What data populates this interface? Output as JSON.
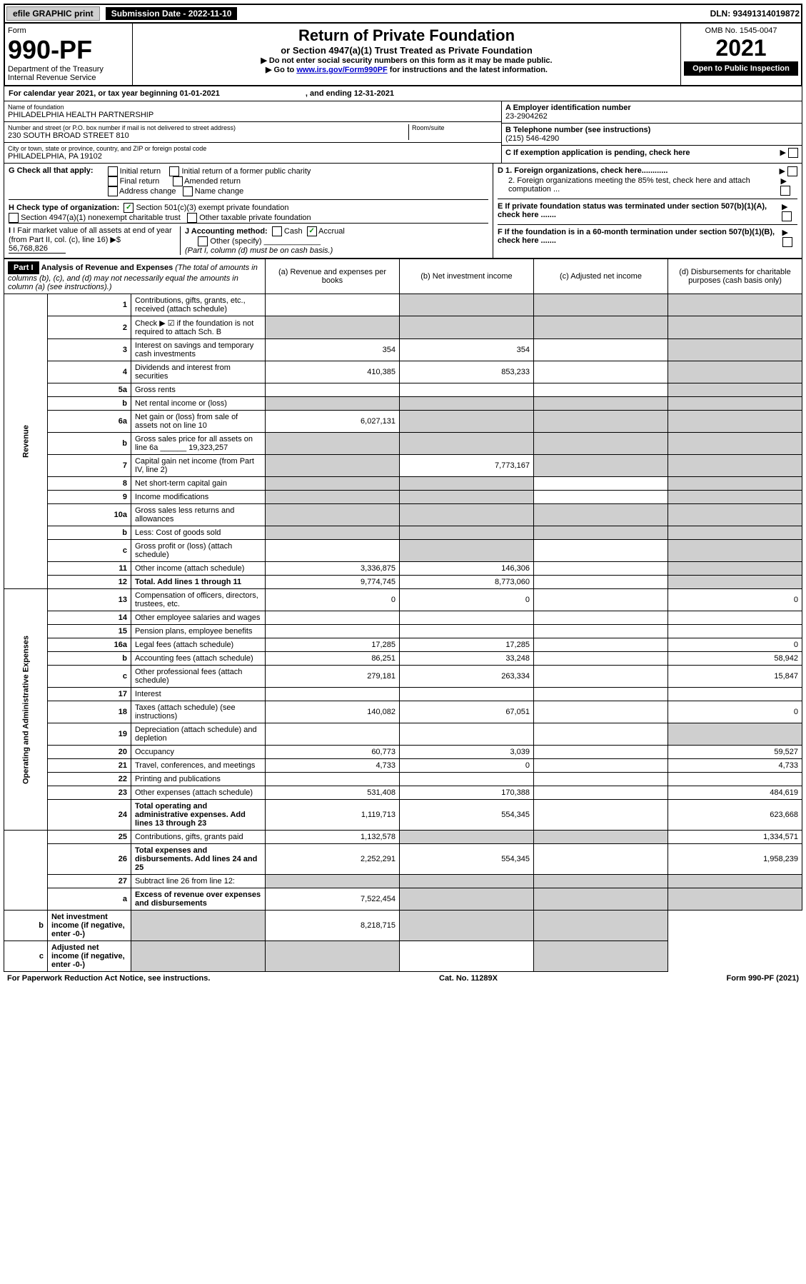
{
  "top": {
    "efile": "efile GRAPHIC print",
    "submission": "Submission Date - 2022-11-10",
    "dln": "DLN: 93491314019872"
  },
  "header": {
    "form_label": "Form",
    "form_num": "990-PF",
    "dept": "Department of the Treasury",
    "irs": "Internal Revenue Service",
    "title": "Return of Private Foundation",
    "subtitle": "or Section 4947(a)(1) Trust Treated as Private Foundation",
    "note1": "▶ Do not enter social security numbers on this form as it may be made public.",
    "note2_pre": "▶ Go to ",
    "note2_link": "www.irs.gov/Form990PF",
    "note2_post": " for instructions and the latest information.",
    "omb": "OMB No. 1545-0047",
    "year": "2021",
    "open": "Open to Public Inspection"
  },
  "calendar": {
    "text": "For calendar year 2021, or tax year beginning 01-01-2021",
    "ending": ", and ending 12-31-2021"
  },
  "entity": {
    "name_label": "Name of foundation",
    "name": "PHILADELPHIA HEALTH PARTNERSHIP",
    "addr_label": "Number and street (or P.O. box number if mail is not delivered to street address)",
    "addr": "230 SOUTH BROAD STREET 810",
    "room_label": "Room/suite",
    "city_label": "City or town, state or province, country, and ZIP or foreign postal code",
    "city": "PHILADELPHIA, PA  19102",
    "ein_label": "A Employer identification number",
    "ein": "23-2904262",
    "phone_label": "B Telephone number (see instructions)",
    "phone": "(215) 546-4290",
    "c_label": "C If exemption application is pending, check here"
  },
  "checks": {
    "g_label": "G Check all that apply:",
    "g_initial": "Initial return",
    "g_initial_former": "Initial return of a former public charity",
    "g_final": "Final return",
    "g_amended": "Amended return",
    "g_address": "Address change",
    "g_name": "Name change",
    "h_label": "H Check type of organization:",
    "h_501c3": "Section 501(c)(3) exempt private foundation",
    "h_4947": "Section 4947(a)(1) nonexempt charitable trust",
    "h_other": "Other taxable private foundation",
    "i_label": "I Fair market value of all assets at end of year (from Part II, col. (c), line 16) ▶$",
    "i_val": "56,768,826",
    "j_label": "J Accounting method:",
    "j_cash": "Cash",
    "j_accrual": "Accrual",
    "j_other": "Other (specify)",
    "j_note": "(Part I, column (d) must be on cash basis.)",
    "d1": "D 1. Foreign organizations, check here............",
    "d2": "2. Foreign organizations meeting the 85% test, check here and attach computation ...",
    "e_label": "E  If private foundation status was terminated under section 507(b)(1)(A), check here .......",
    "f_label": "F  If the foundation is in a 60-month termination under section 507(b)(1)(B), check here ......."
  },
  "part1": {
    "label": "Part I",
    "title": "Analysis of Revenue and Expenses",
    "title_note": "(The total of amounts in columns (b), (c), and (d) may not necessarily equal the amounts in column (a) (see instructions).)",
    "col_a": "(a) Revenue and expenses per books",
    "col_b": "(b) Net investment income",
    "col_c": "(c) Adjusted net income",
    "col_d": "(d) Disbursements for charitable purposes (cash basis only)"
  },
  "vlabels": {
    "revenue": "Revenue",
    "expenses": "Operating and Administrative Expenses"
  },
  "rows": [
    {
      "n": "1",
      "desc": "Contributions, gifts, grants, etc., received (attach schedule)",
      "a": "",
      "b": "",
      "c": "",
      "d": "",
      "agrey": false,
      "bgrey": true,
      "cgrey": true,
      "dgrey": true
    },
    {
      "n": "2",
      "desc": "Check ▶ ☑ if the foundation is not required to attach Sch. B",
      "a": "",
      "b": "",
      "c": "",
      "d": "",
      "agrey": true,
      "bgrey": true,
      "cgrey": true,
      "dgrey": true,
      "bold_not": true
    },
    {
      "n": "3",
      "desc": "Interest on savings and temporary cash investments",
      "a": "354",
      "b": "354",
      "c": "",
      "d": "",
      "dgrey": true
    },
    {
      "n": "4",
      "desc": "Dividends and interest from securities",
      "a": "410,385",
      "b": "853,233",
      "c": "",
      "d": "",
      "dgrey": true
    },
    {
      "n": "5a",
      "desc": "Gross rents",
      "a": "",
      "b": "",
      "c": "",
      "d": "",
      "dgrey": true
    },
    {
      "n": "b",
      "desc": "Net rental income or (loss)",
      "a": "",
      "b": "",
      "c": "",
      "d": "",
      "agrey": true,
      "bgrey": true,
      "cgrey": true,
      "dgrey": true
    },
    {
      "n": "6a",
      "desc": "Net gain or (loss) from sale of assets not on line 10",
      "a": "6,027,131",
      "b": "",
      "c": "",
      "d": "",
      "bgrey": true,
      "cgrey": true,
      "dgrey": true
    },
    {
      "n": "b",
      "desc": "Gross sales price for all assets on line 6a ______ 19,323,257",
      "a": "",
      "b": "",
      "c": "",
      "d": "",
      "agrey": true,
      "bgrey": true,
      "cgrey": true,
      "dgrey": true
    },
    {
      "n": "7",
      "desc": "Capital gain net income (from Part IV, line 2)",
      "a": "",
      "b": "7,773,167",
      "c": "",
      "d": "",
      "agrey": true,
      "cgrey": true,
      "dgrey": true
    },
    {
      "n": "8",
      "desc": "Net short-term capital gain",
      "a": "",
      "b": "",
      "c": "",
      "d": "",
      "agrey": true,
      "bgrey": true,
      "dgrey": true
    },
    {
      "n": "9",
      "desc": "Income modifications",
      "a": "",
      "b": "",
      "c": "",
      "d": "",
      "agrey": true,
      "bgrey": true,
      "dgrey": true
    },
    {
      "n": "10a",
      "desc": "Gross sales less returns and allowances",
      "a": "",
      "b": "",
      "c": "",
      "d": "",
      "agrey": true,
      "bgrey": true,
      "cgrey": true,
      "dgrey": true
    },
    {
      "n": "b",
      "desc": "Less: Cost of goods sold",
      "a": "",
      "b": "",
      "c": "",
      "d": "",
      "agrey": true,
      "bgrey": true,
      "cgrey": true,
      "dgrey": true
    },
    {
      "n": "c",
      "desc": "Gross profit or (loss) (attach schedule)",
      "a": "",
      "b": "",
      "c": "",
      "d": "",
      "bgrey": true,
      "dgrey": true
    },
    {
      "n": "11",
      "desc": "Other income (attach schedule)",
      "a": "3,336,875",
      "b": "146,306",
      "c": "",
      "d": "",
      "dgrey": true
    },
    {
      "n": "12",
      "desc": "Total. Add lines 1 through 11",
      "a": "9,774,745",
      "b": "8,773,060",
      "c": "",
      "d": "",
      "dgrey": true,
      "bold": true
    },
    {
      "n": "13",
      "desc": "Compensation of officers, directors, trustees, etc.",
      "a": "0",
      "b": "0",
      "c": "",
      "d": "0"
    },
    {
      "n": "14",
      "desc": "Other employee salaries and wages",
      "a": "",
      "b": "",
      "c": "",
      "d": ""
    },
    {
      "n": "15",
      "desc": "Pension plans, employee benefits",
      "a": "",
      "b": "",
      "c": "",
      "d": ""
    },
    {
      "n": "16a",
      "desc": "Legal fees (attach schedule)",
      "a": "17,285",
      "b": "17,285",
      "c": "",
      "d": "0"
    },
    {
      "n": "b",
      "desc": "Accounting fees (attach schedule)",
      "a": "86,251",
      "b": "33,248",
      "c": "",
      "d": "58,942"
    },
    {
      "n": "c",
      "desc": "Other professional fees (attach schedule)",
      "a": "279,181",
      "b": "263,334",
      "c": "",
      "d": "15,847"
    },
    {
      "n": "17",
      "desc": "Interest",
      "a": "",
      "b": "",
      "c": "",
      "d": ""
    },
    {
      "n": "18",
      "desc": "Taxes (attach schedule) (see instructions)",
      "a": "140,082",
      "b": "67,051",
      "c": "",
      "d": "0"
    },
    {
      "n": "19",
      "desc": "Depreciation (attach schedule) and depletion",
      "a": "",
      "b": "",
      "c": "",
      "d": "",
      "dgrey": true
    },
    {
      "n": "20",
      "desc": "Occupancy",
      "a": "60,773",
      "b": "3,039",
      "c": "",
      "d": "59,527"
    },
    {
      "n": "21",
      "desc": "Travel, conferences, and meetings",
      "a": "4,733",
      "b": "0",
      "c": "",
      "d": "4,733"
    },
    {
      "n": "22",
      "desc": "Printing and publications",
      "a": "",
      "b": "",
      "c": "",
      "d": ""
    },
    {
      "n": "23",
      "desc": "Other expenses (attach schedule)",
      "a": "531,408",
      "b": "170,388",
      "c": "",
      "d": "484,619"
    },
    {
      "n": "24",
      "desc": "Total operating and administrative expenses. Add lines 13 through 23",
      "a": "1,119,713",
      "b": "554,345",
      "c": "",
      "d": "623,668",
      "bold": true
    },
    {
      "n": "25",
      "desc": "Contributions, gifts, grants paid",
      "a": "1,132,578",
      "b": "",
      "c": "",
      "d": "1,334,571",
      "bgrey": true,
      "cgrey": true
    },
    {
      "n": "26",
      "desc": "Total expenses and disbursements. Add lines 24 and 25",
      "a": "2,252,291",
      "b": "554,345",
      "c": "",
      "d": "1,958,239",
      "bold": true
    },
    {
      "n": "27",
      "desc": "Subtract line 26 from line 12:",
      "a": "",
      "b": "",
      "c": "",
      "d": "",
      "agrey": true,
      "bgrey": true,
      "cgrey": true,
      "dgrey": true
    },
    {
      "n": "a",
      "desc": "Excess of revenue over expenses and disbursements",
      "a": "7,522,454",
      "b": "",
      "c": "",
      "d": "",
      "bgrey": true,
      "cgrey": true,
      "dgrey": true,
      "bold": true
    },
    {
      "n": "b",
      "desc": "Net investment income (if negative, enter -0-)",
      "a": "",
      "b": "8,218,715",
      "c": "",
      "d": "",
      "agrey": true,
      "cgrey": true,
      "dgrey": true,
      "bold": true
    },
    {
      "n": "c",
      "desc": "Adjusted net income (if negative, enter -0-)",
      "a": "",
      "b": "",
      "c": "",
      "d": "",
      "agrey": true,
      "bgrey": true,
      "dgrey": true,
      "bold": true
    }
  ],
  "footer": {
    "left": "For Paperwork Reduction Act Notice, see instructions.",
    "center": "Cat. No. 11289X",
    "right": "Form 990-PF (2021)"
  }
}
